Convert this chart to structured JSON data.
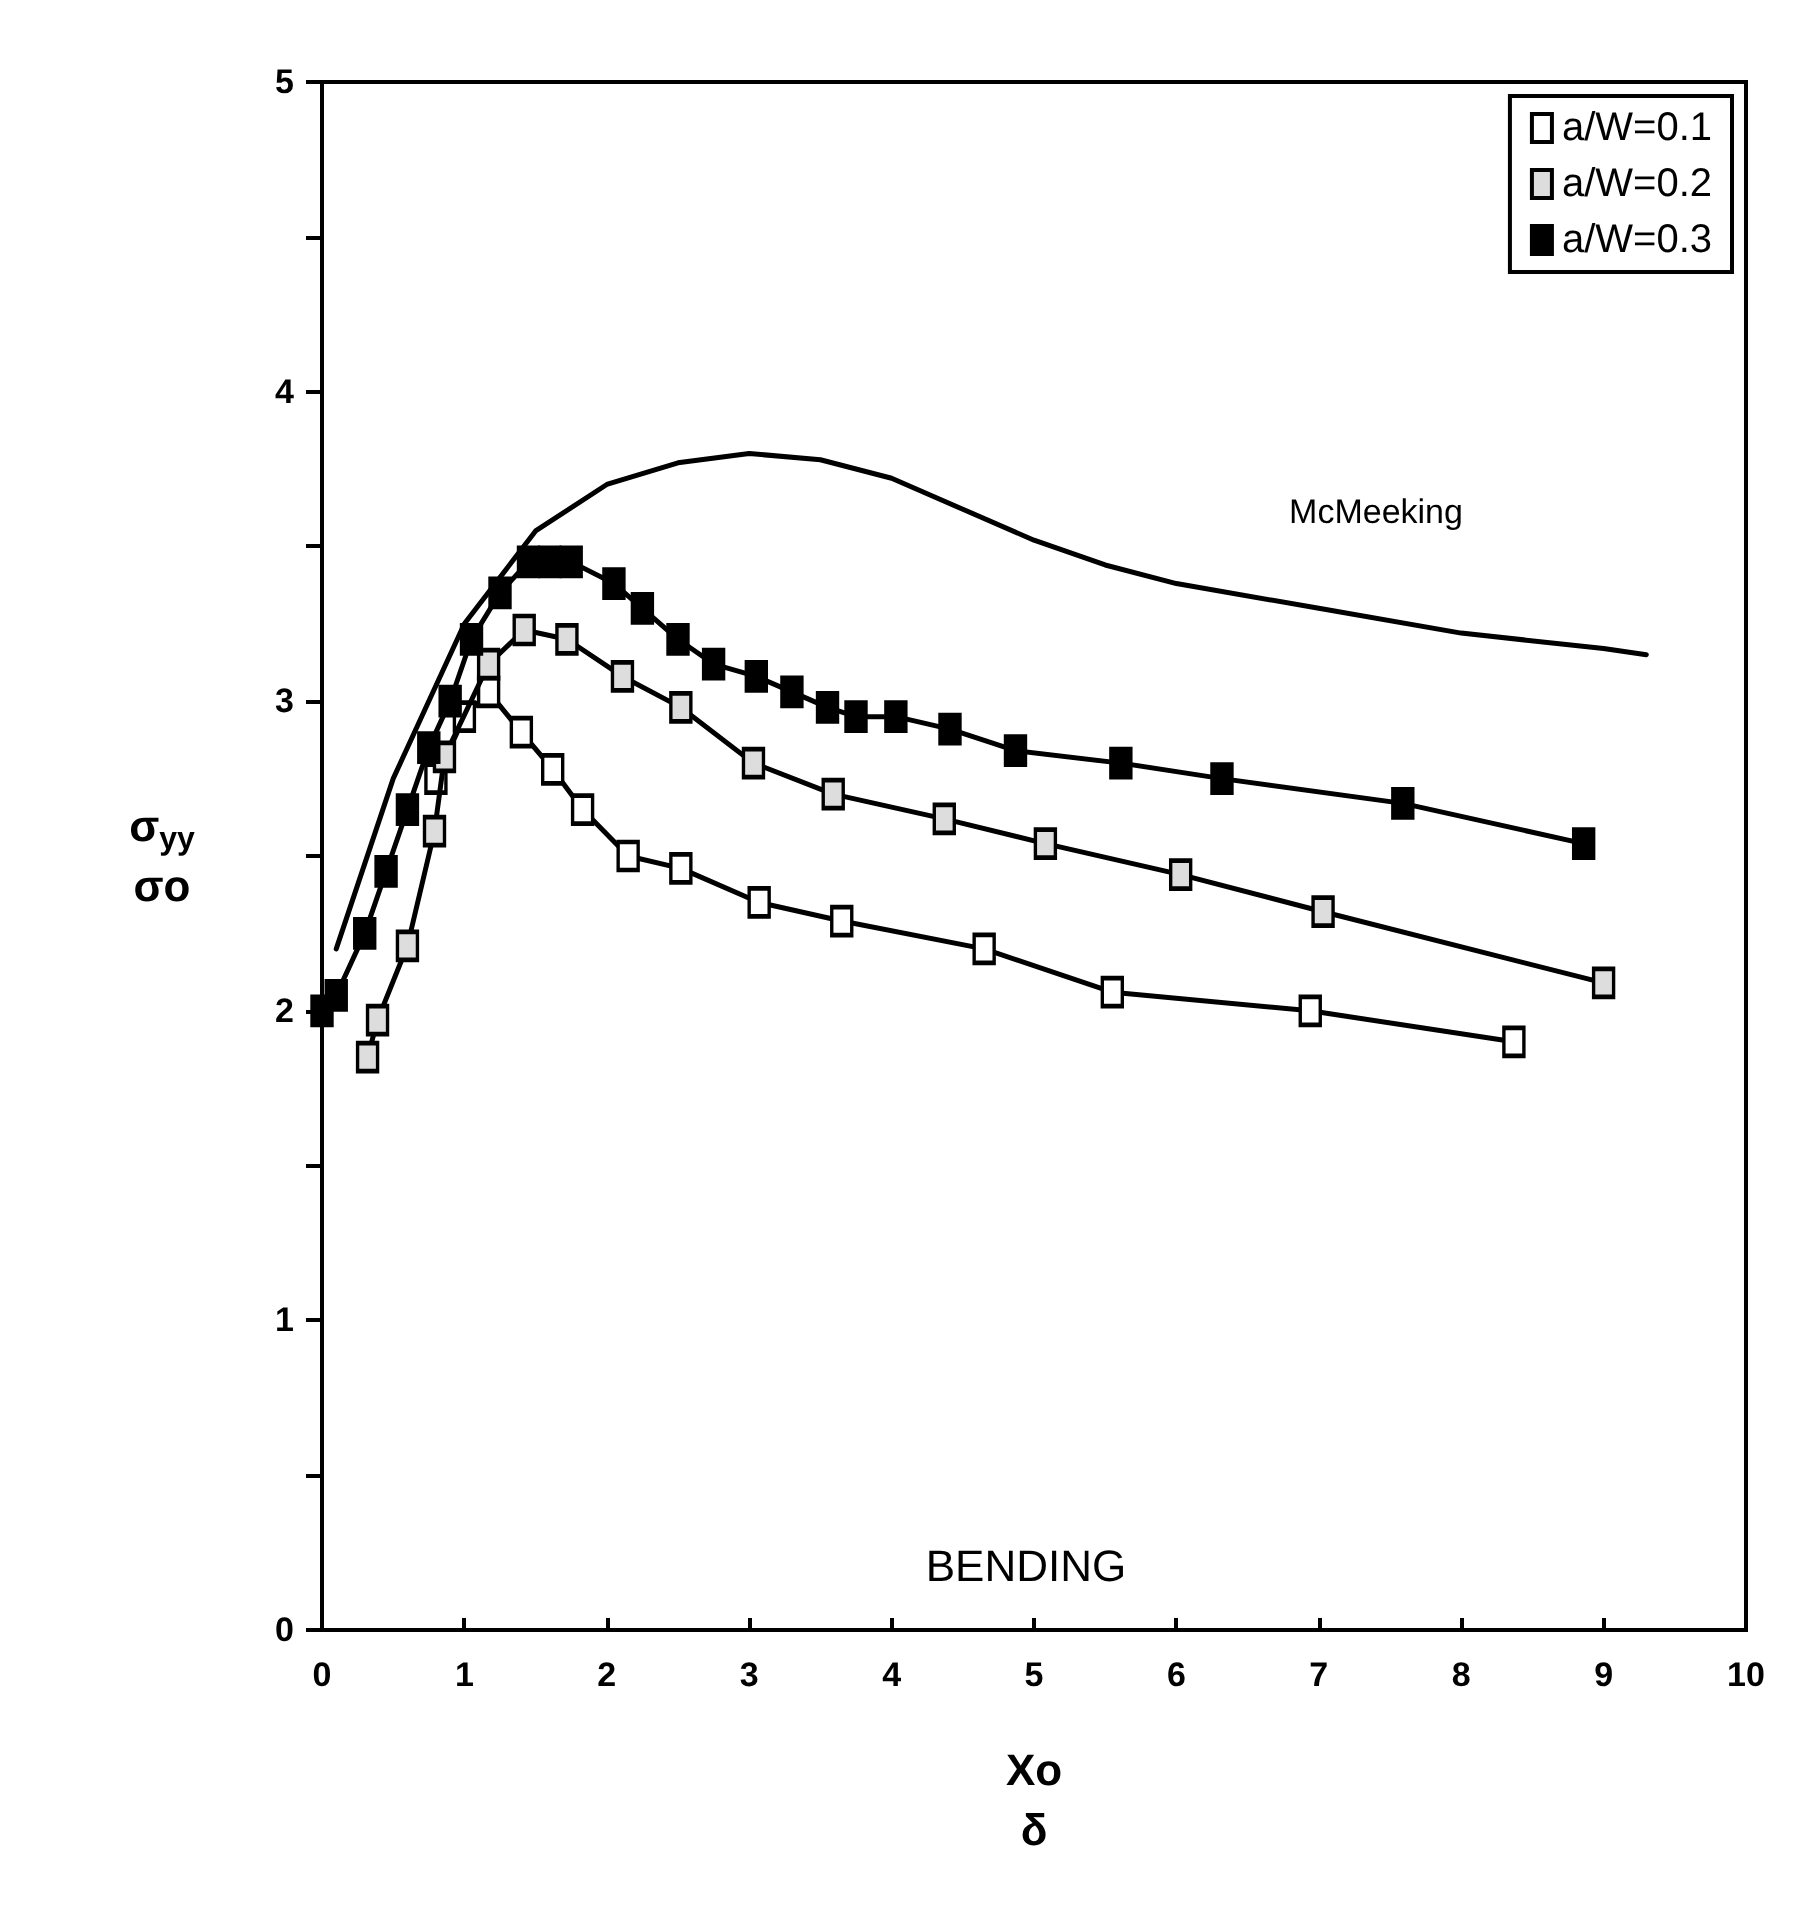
{
  "chart_data": {
    "type": "line",
    "xlabel": "Xo\nδ",
    "ylabel": "σ$_{yy}$\nσo",
    "xlim": [
      0,
      10
    ],
    "xticks": [
      0,
      1,
      2,
      3,
      4,
      5,
      6,
      7,
      8,
      9,
      10
    ],
    "ylim": [
      0,
      5
    ],
    "yticks": [
      0,
      {
        "value": 0.5,
        "label": null
      },
      1,
      {
        "value": 1.5,
        "label": null
      },
      2,
      {
        "value": 2.5,
        "label": null
      },
      3,
      {
        "value": 3.5,
        "label": null
      },
      4,
      {
        "value": 4.5,
        "label": null
      },
      5
    ],
    "grid": false,
    "legend": "top right",
    "marker": "square",
    "line_style": "solid",
    "series": [
      {
        "name": "a/W=0.1",
        "color": "#000000",
        "x": [
          0.8,
          1.0,
          1.17,
          1.4,
          1.62,
          1.83,
          2.15,
          2.52,
          3.07,
          3.65,
          4.65,
          5.55,
          6.94,
          8.37
        ],
        "values": [
          2.75,
          2.95,
          3.03,
          2.9,
          2.78,
          2.65,
          2.5,
          2.46,
          2.35,
          2.29,
          2.2,
          2.06,
          2.0,
          1.9
        ]
      },
      {
        "name": "a/W=0.2",
        "color": "#000000",
        "x": [
          0.32,
          0.39,
          0.6,
          0.79,
          0.86,
          1.17,
          1.42,
          1.72,
          2.11,
          2.52,
          3.03,
          3.59,
          4.37,
          5.08,
          6.03,
          7.03,
          9.0
        ],
        "values": [
          1.85,
          1.97,
          2.21,
          2.58,
          2.82,
          3.12,
          3.23,
          3.2,
          3.08,
          2.98,
          2.8,
          2.7,
          2.62,
          2.54,
          2.44,
          2.32,
          2.09
        ]
      },
      {
        "name": "a/W=0.3",
        "color": "#000000",
        "x": [
          0,
          0.1,
          0.3,
          0.45,
          0.6,
          0.75,
          0.9,
          1.05,
          1.25,
          1.45,
          1.6,
          1.75,
          2.05,
          2.25,
          2.5,
          2.75,
          3.05,
          3.3,
          3.55,
          3.75,
          4.03,
          4.41,
          4.87,
          5.61,
          6.32,
          7.59,
          8.86
        ],
        "values": [
          2.0,
          2.05,
          2.25,
          2.45,
          2.65,
          2.85,
          3.0,
          3.2,
          3.35,
          3.45,
          3.45,
          3.45,
          3.38,
          3.3,
          3.2,
          3.12,
          3.08,
          3.03,
          2.98,
          2.95,
          2.95,
          2.91,
          2.84,
          2.8,
          2.75,
          2.67,
          2.54
        ]
      },
      {
        "type": "line",
        "marker": "none",
        "color": "#000000",
        "x": [
          0.1,
          0.5,
          1,
          1.5,
          2,
          2.5,
          3,
          3.5,
          4,
          4.5,
          5,
          5.5,
          6,
          7,
          8,
          9,
          9.3
        ],
        "values": [
          2.2,
          2.75,
          3.25,
          3.55,
          3.7,
          3.77,
          3.8,
          3.78,
          3.72,
          3.62,
          3.52,
          3.44,
          3.38,
          3.3,
          3.22,
          3.17,
          3.15
        ]
      }
    ],
    "annotations": [
      "McMeeking",
      "BENDING"
    ]
  }
}
